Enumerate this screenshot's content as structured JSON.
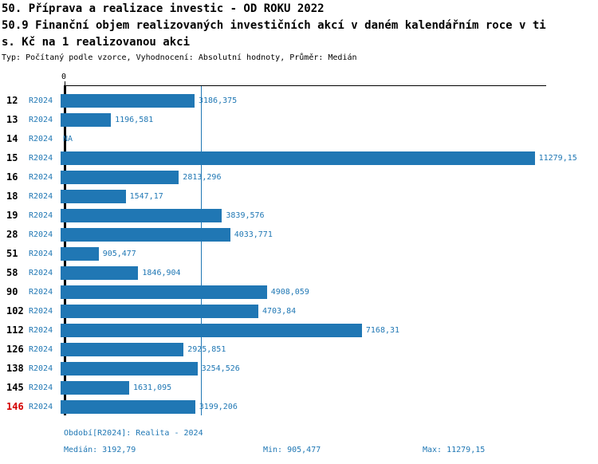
{
  "header": {
    "title_line1": "50. Příprava a realizace investic - OD ROKU 2022",
    "title_line2": "50.9 Finanční objem realizovaných investičních akcí v daném kalendářním roce v ti",
    "title_line3": "s. Kč na 1 realizovanou akci",
    "meta_line": "Typ: Počítaný podle vzorce, Vyhodnocení: Absolutní hodnoty, Průměr: Medián"
  },
  "axis": {
    "zero_label": "0"
  },
  "chart_data": {
    "type": "bar",
    "orientation": "horizontal",
    "series_label": "R2024",
    "categories": [
      "12",
      "13",
      "14",
      "15",
      "16",
      "18",
      "19",
      "28",
      "51",
      "58",
      "90",
      "102",
      "112",
      "126",
      "138",
      "145",
      "146"
    ],
    "values": [
      3186.375,
      1196.581,
      null,
      11279.15,
      2813.296,
      1547.17,
      3839.576,
      4033.771,
      905.477,
      1846.904,
      4908.059,
      4703.84,
      7168.31,
      2925.851,
      3254.526,
      1631.095,
      3199.206
    ],
    "value_labels": [
      "3186,375",
      "1196,581",
      "NA",
      "11279,15",
      "2813,296",
      "1547,17",
      "3839,576",
      "4033,771",
      "905,477",
      "1846,904",
      "4908,059",
      "4703,84",
      "7168,31",
      "2925,851",
      "3254,526",
      "1631,095",
      "3199,206"
    ],
    "na_label": "NA",
    "highlighted_category": "146",
    "xlim": [
      0,
      11400
    ],
    "median_value": 3192.79,
    "min_value": 905.477,
    "max_value": 11279.15,
    "grid": false,
    "legend": false,
    "colors": {
      "bar": "#2077B4",
      "value_text": "#1F77B4",
      "highlight_text": "#D40000",
      "axis": "#000000",
      "background": "#FFFFFF"
    }
  },
  "footer": {
    "period_label": "Období[R2024]: Realita - 2024",
    "median_label": "Medián: 3192,79",
    "min_label": "Min: 905,477",
    "max_label": "Max: 11279,15"
  }
}
